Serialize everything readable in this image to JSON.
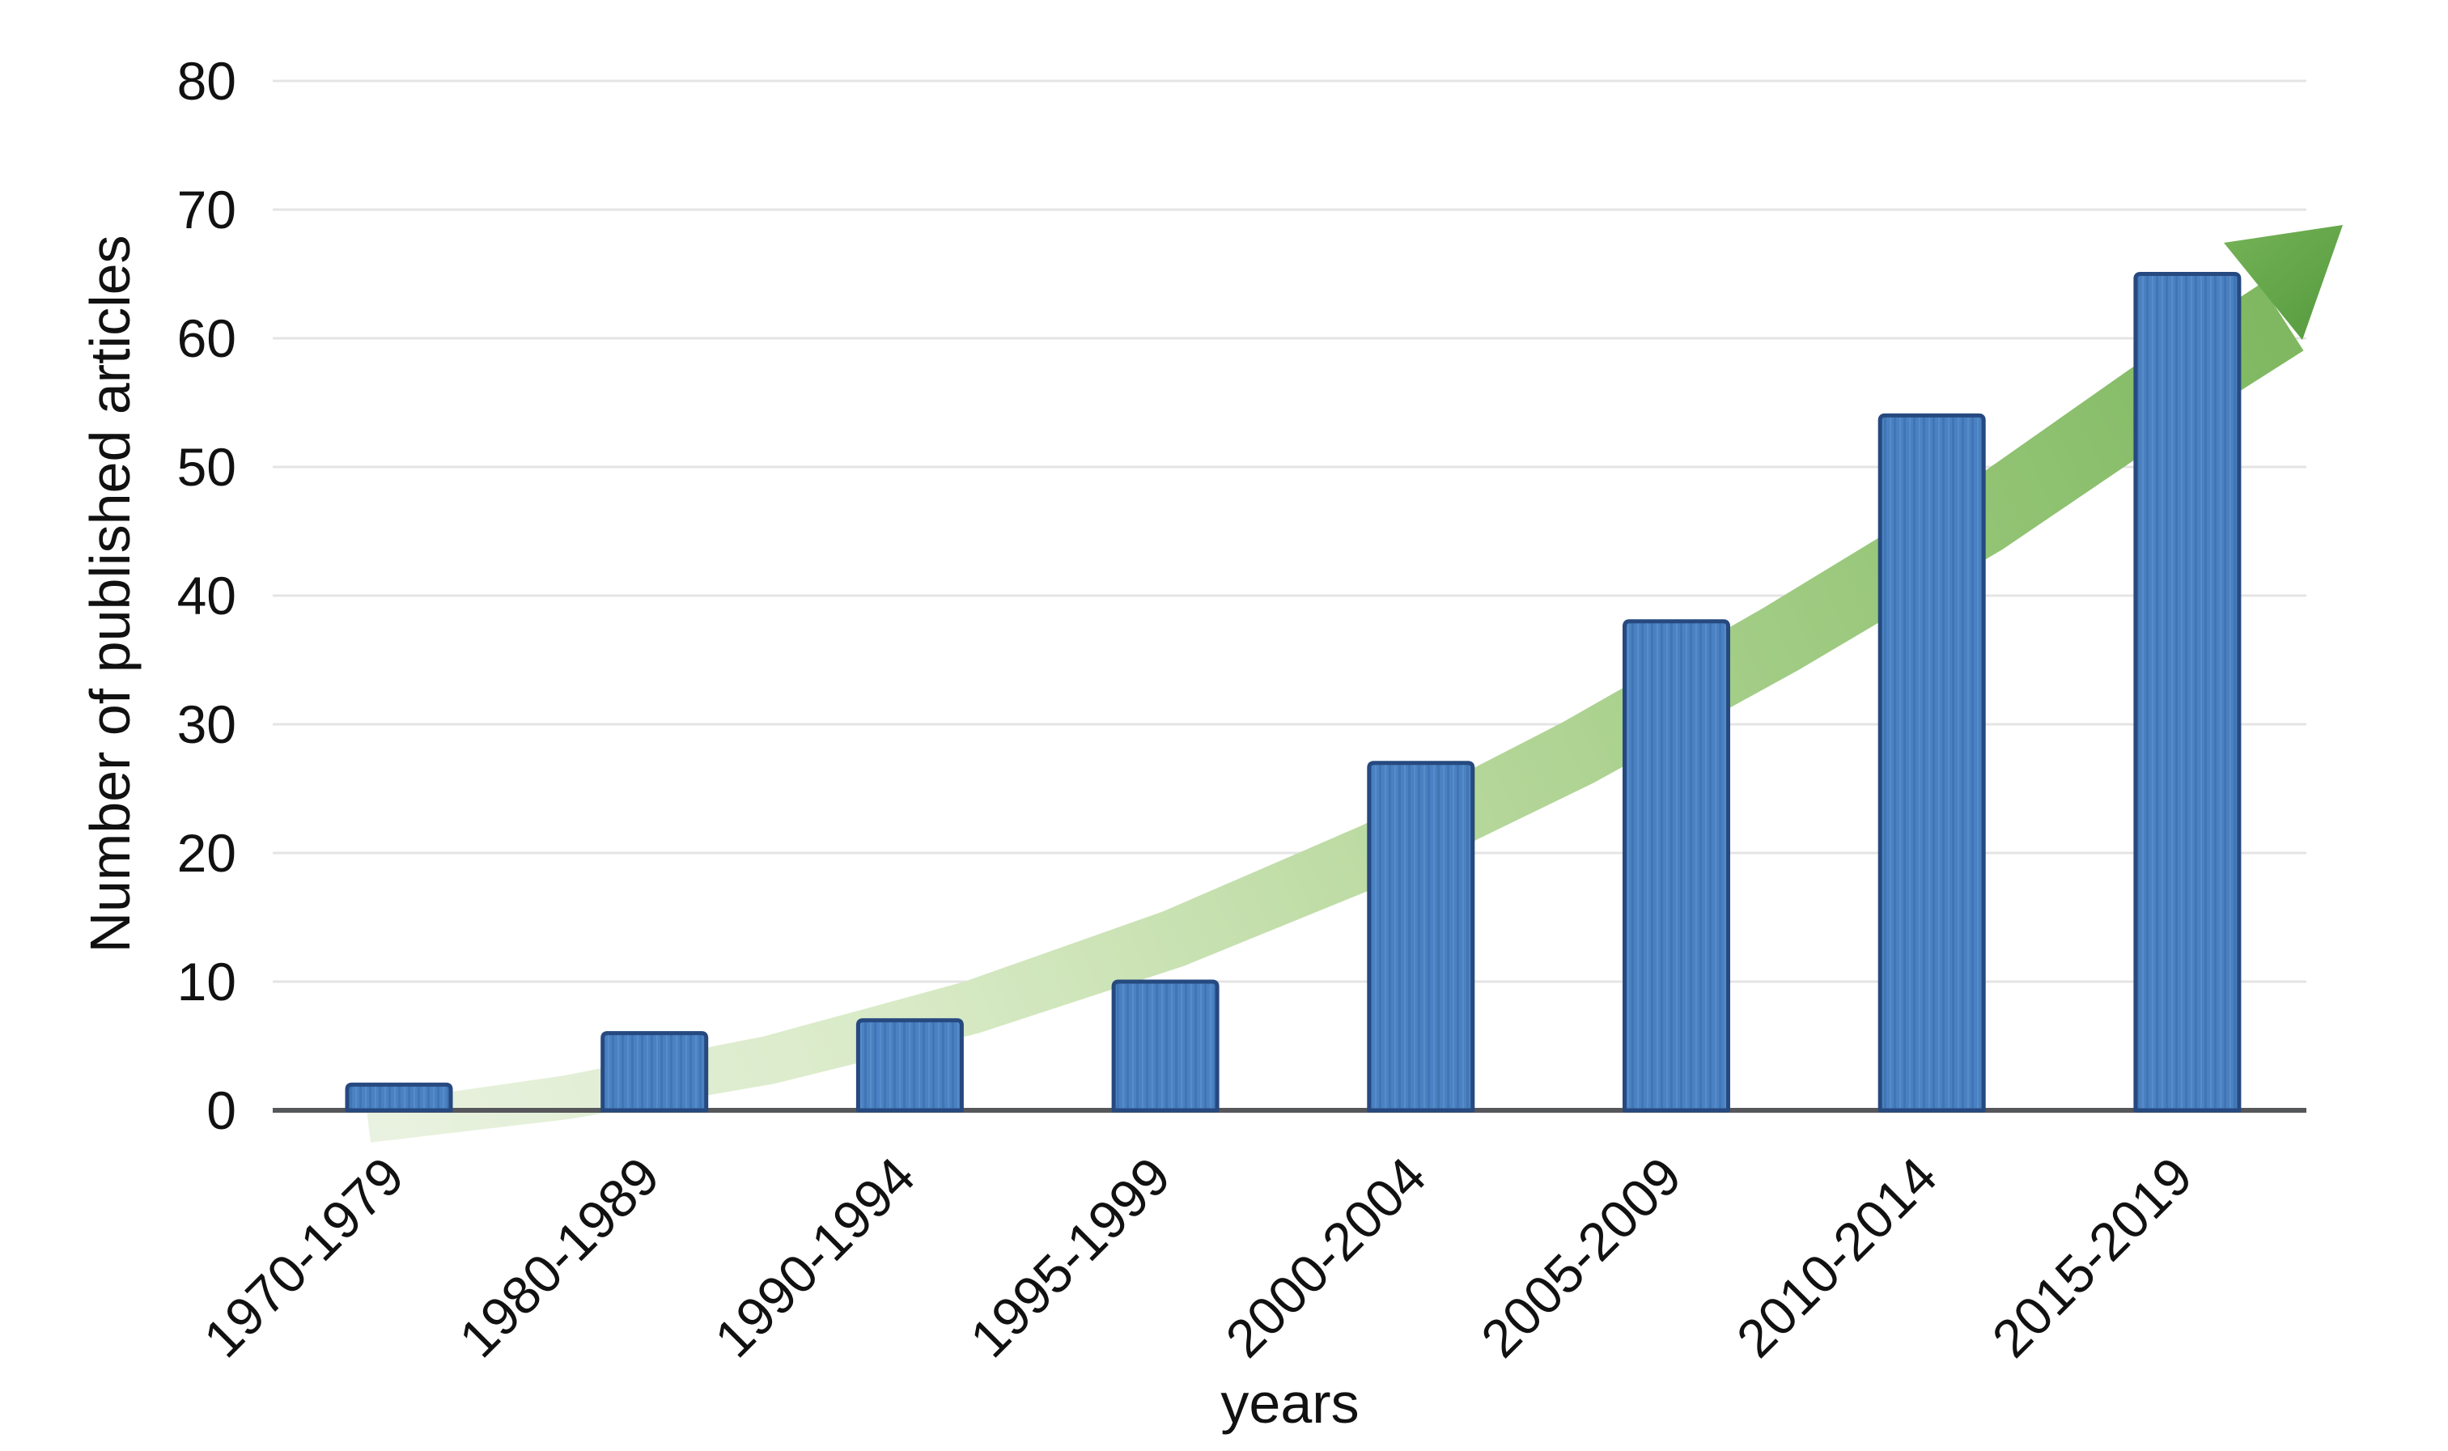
{
  "page": {
    "background": "#ffffff"
  },
  "chart_data": {
    "type": "bar",
    "title": "",
    "categories": [
      "1970-1979",
      "1980-1989",
      "1990-1994",
      "1995-1999",
      "2000-2004",
      "2005-2009",
      "2010-2014",
      "2015-2019"
    ],
    "values": [
      2,
      6,
      7,
      10,
      27,
      38,
      54,
      65
    ],
    "xlabel": "years",
    "ylabel": "Number of published articles",
    "yticks": [
      0,
      10,
      20,
      30,
      40,
      50,
      60,
      70,
      80
    ],
    "ylim": [
      0,
      80
    ],
    "grid": "horizontal-only",
    "legend": "none",
    "colors": {
      "bar_fill": "#4a81c2",
      "bar_stripe_dark": "#4076b5",
      "bar_stripe_light": "#5b8ec9",
      "bar_border": "#26497f",
      "gridline": "#e4e4e4",
      "axis_line": "#56575b",
      "text": "#111111",
      "arrow_tail": "#e9f2e0",
      "arrow_mid": "#b9d99e",
      "arrow_shaft_end": "#7ab55c",
      "arrow_head": "#64a848"
    },
    "annotations": [
      {
        "type": "trend-arrow",
        "description": "tapered green swoosh arrow rising behind the bars from lower-left to upper-right, ending in a solid green arrowhead"
      }
    ]
  }
}
